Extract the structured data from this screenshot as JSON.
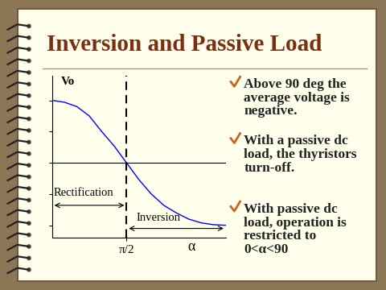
{
  "title": "Inversion and Passive Load",
  "bullets": [
    "Above 90 deg the\naverage voltage is\nnegative.",
    "With a passive dc\nload, the thyristors\nturn-off.",
    "With passive dc\nload, operation is\nrestricted to\n0<α<90"
  ],
  "chart_data": {
    "type": "line",
    "y_label": "Vo",
    "x_label": "α",
    "x": [
      0,
      15,
      30,
      45,
      60,
      75,
      90,
      105,
      120,
      135,
      150,
      165,
      180,
      195,
      210
    ],
    "values": [
      1.0,
      0.97,
      0.9,
      0.75,
      0.5,
      0.27,
      0.0,
      -0.27,
      -0.5,
      -0.68,
      -0.8,
      -0.9,
      -0.96,
      -0.99,
      -1.0
    ],
    "color": "#0000ff",
    "xlim": [
      0,
      210
    ],
    "ylim": [
      -1.2,
      1.4
    ],
    "xticks": [
      {
        "value": 90,
        "label": "π/2"
      }
    ],
    "yticks": [
      -1,
      -0.5,
      0,
      0.5,
      1
    ],
    "tick_labels": "x",
    "annotations": [
      "Rectification",
      "Inversion"
    ]
  }
}
